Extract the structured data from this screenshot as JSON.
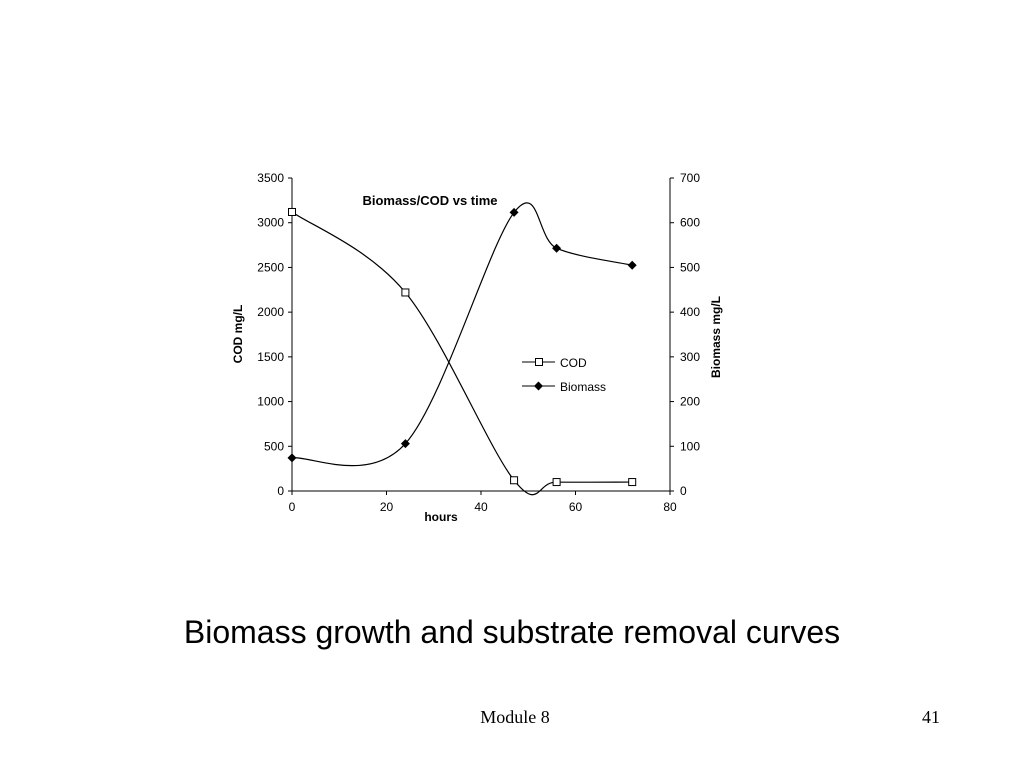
{
  "slide": {
    "caption": "Biomass growth and substrate removal curves",
    "footer": "Module 8",
    "page_number": "41"
  },
  "chart_data": {
    "type": "line",
    "title": "Biomass/COD vs time",
    "xlabel": "hours",
    "ylabel": "COD mg/L",
    "y2label": "Biomass mg/L",
    "xlim": [
      0,
      80
    ],
    "ylim": [
      0,
      3500
    ],
    "y2lim": [
      0,
      700
    ],
    "x_ticks": [
      "0",
      "20",
      "40",
      "60",
      "80"
    ],
    "y_ticks": [
      "0",
      "500",
      "1000",
      "1500",
      "2000",
      "2500",
      "3000",
      "3500"
    ],
    "y2_ticks": [
      "0",
      "100",
      "200",
      "300",
      "400",
      "500",
      "600",
      "700"
    ],
    "grid": false,
    "legend_position": "center-right",
    "series": [
      {
        "name": "COD",
        "axis": "left",
        "marker": "square-open",
        "color": "#000000",
        "x": [
          0,
          24,
          47,
          56,
          72
        ],
        "y": [
          3120,
          2220,
          120,
          100,
          100
        ]
      },
      {
        "name": "Biomass",
        "axis": "right",
        "marker": "diamond-filled",
        "color": "#000000",
        "x": [
          0,
          24,
          47,
          56,
          72
        ],
        "y": [
          74,
          106,
          623,
          543,
          505
        ]
      }
    ]
  }
}
